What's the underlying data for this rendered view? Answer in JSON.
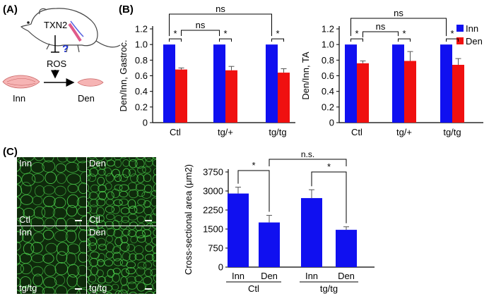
{
  "panel_labels": {
    "a": "(A)",
    "b": "(B)",
    "c": "(C)"
  },
  "schematic": {
    "mouse_label": "TXN2",
    "question": "?",
    "ros": "ROS",
    "inn": "Inn",
    "den": "Den"
  },
  "legend": {
    "inn": "Inn",
    "den": "Den"
  },
  "colors": {
    "inn": "#1010f0",
    "den": "#f01010",
    "tissue": "#f4a6a6",
    "fiber": "#4dd24d"
  },
  "micrographs": {
    "inn_ctl": {
      "top": "Inn",
      "bottom": "Ctl"
    },
    "den_ctl": {
      "top": "Den",
      "bottom": "Ctl"
    },
    "inn_tgtg": {
      "top": "Inn",
      "bottom": "tg/tg"
    },
    "den_tgtg": {
      "top": "Den",
      "bottom": "tg/tg"
    }
  },
  "chart_data": [
    {
      "type": "bar",
      "ylabel": "Den/Inn, Gastroc.",
      "ylim": [
        0,
        1.2
      ],
      "yticks": [
        "0",
        "0.2",
        "0.4",
        "0.6",
        "0.8",
        "1.0",
        "1.2"
      ],
      "categories": [
        "Ctl",
        "tg/+",
        "tg/tg"
      ],
      "series": [
        {
          "name": "Inn",
          "values": [
            1.0,
            1.0,
            1.0
          ],
          "errors": [
            0,
            0,
            0
          ]
        },
        {
          "name": "Den",
          "values": [
            0.68,
            0.67,
            0.64
          ],
          "errors": [
            0.02,
            0.05,
            0.05
          ]
        }
      ],
      "annotations": [
        "*",
        "*",
        "*",
        "ns",
        "ns"
      ]
    },
    {
      "type": "bar",
      "ylabel": "Den/Inn, TA",
      "ylim": [
        0,
        1.2
      ],
      "yticks": [
        "0",
        "0.2",
        "0.4",
        "0.6",
        "0.8",
        "1.0",
        "1.2"
      ],
      "categories": [
        "Ctl",
        "tg/+",
        "tg/tg"
      ],
      "series": [
        {
          "name": "Inn",
          "values": [
            1.0,
            1.0,
            1.0
          ],
          "errors": [
            0,
            0,
            0
          ]
        },
        {
          "name": "Den",
          "values": [
            0.76,
            0.79,
            0.74
          ],
          "errors": [
            0.03,
            0.12,
            0.08
          ]
        }
      ],
      "annotations": [
        "*",
        "*",
        "*",
        "ns",
        "ns"
      ]
    },
    {
      "type": "bar",
      "ylabel": "Cross-sectional area (μm2)",
      "ylim": [
        0,
        3750
      ],
      "yticks": [
        "0",
        "750",
        "1500",
        "2250",
        "3000",
        "3750"
      ],
      "categories": [
        "Inn",
        "Den",
        "Inn",
        "Den"
      ],
      "groups": [
        "Ctl",
        "tg/tg"
      ],
      "values": [
        2900,
        1760,
        2720,
        1470
      ],
      "errors": [
        250,
        280,
        330,
        120
      ],
      "annotations": [
        "*",
        "*",
        "n.s."
      ]
    }
  ]
}
